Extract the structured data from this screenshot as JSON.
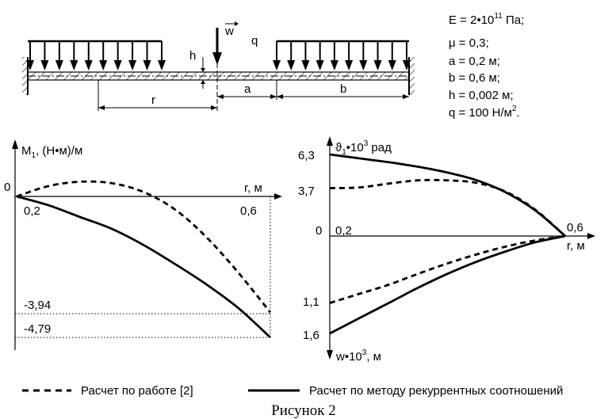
{
  "params": [
    {
      "text": "E = 2•10",
      "sup": "11",
      "tail": " Па;"
    },
    {
      "text": "μ = 0,3;"
    },
    {
      "text": "a = 0,2 м;"
    },
    {
      "text": "b = 0,6 м;"
    },
    {
      "text": "h = 0,002 м;"
    },
    {
      "text": "q = 100 Н/м",
      "sup": "2",
      "tail": "."
    }
  ],
  "scheme": {
    "w": "w",
    "q": "q",
    "h": "h",
    "r": "r",
    "a": "a",
    "b": "b"
  },
  "chart_data": [
    {
      "type": "line",
      "ylabel": "M",
      "ylabel_sub": "1",
      "ylabel_tail": ", (Н•м)/м",
      "xlabel": "r, м",
      "origin_label": "0",
      "x_ticks": [
        "0,2",
        "0,6"
      ],
      "y_ticks": [
        "-3,94",
        "-4,79"
      ],
      "series": [
        {
          "style": "dashed",
          "x": [
            0.2,
            0.25,
            0.3,
            0.35,
            0.4,
            0.45,
            0.5,
            0.55,
            0.6
          ],
          "y": [
            0.0,
            0.35,
            0.5,
            0.45,
            0.15,
            -0.45,
            -1.4,
            -2.6,
            -3.94
          ]
        },
        {
          "style": "solid",
          "x": [
            0.2,
            0.25,
            0.3,
            0.35,
            0.4,
            0.45,
            0.5,
            0.55,
            0.6
          ],
          "y": [
            0.0,
            -0.3,
            -0.7,
            -1.1,
            -1.65,
            -2.3,
            -3.0,
            -3.8,
            -4.79
          ]
        }
      ]
    },
    {
      "type": "line",
      "ylabel": "ϑ",
      "ylabel_sub": "1",
      "ylabel_mid": "•10",
      "ylabel_sup": "3",
      "ylabel_tail": " рад",
      "y2label": "w•10",
      "y2label_sup": "3",
      "y2label_tail": ", м",
      "xlabel": "r, м",
      "origin_label": "0",
      "x_ticks": [
        "0,2",
        "0,6"
      ],
      "y_ticks_up": [
        "6,3",
        "3,7"
      ],
      "y_ticks_down": [
        "1,1",
        "1,6"
      ],
      "series": [
        {
          "name": "theta_dashed",
          "style": "dashed",
          "x": [
            0.2,
            0.25,
            0.3,
            0.35,
            0.4,
            0.45,
            0.5,
            0.55,
            0.6
          ],
          "y": [
            3.7,
            3.75,
            4.05,
            4.3,
            4.3,
            4.1,
            3.4,
            2.0,
            0.0
          ]
        },
        {
          "name": "theta_solid",
          "style": "solid",
          "x": [
            0.2,
            0.25,
            0.3,
            0.35,
            0.4,
            0.45,
            0.5,
            0.55,
            0.6
          ],
          "y": [
            6.3,
            6.0,
            5.7,
            5.35,
            4.9,
            4.3,
            3.35,
            1.95,
            0.0
          ]
        },
        {
          "name": "w_dashed",
          "style": "dashed",
          "x": [
            0.2,
            0.25,
            0.3,
            0.35,
            0.4,
            0.45,
            0.5,
            0.55,
            0.6
          ],
          "y": [
            -1.1,
            -0.95,
            -0.8,
            -0.62,
            -0.45,
            -0.3,
            -0.17,
            -0.07,
            0.0
          ]
        },
        {
          "name": "w_solid",
          "style": "solid",
          "x": [
            0.2,
            0.25,
            0.3,
            0.35,
            0.4,
            0.45,
            0.5,
            0.55,
            0.6
          ],
          "y": [
            -1.6,
            -1.35,
            -1.1,
            -0.85,
            -0.62,
            -0.42,
            -0.25,
            -0.1,
            0.0
          ]
        }
      ]
    }
  ],
  "legend": [
    {
      "style": "dashed",
      "label": "Расчет по работе [2]"
    },
    {
      "style": "solid",
      "label": "Расчет по методу рекуррентных соотношений"
    }
  ],
  "caption": "Рисунок 2"
}
